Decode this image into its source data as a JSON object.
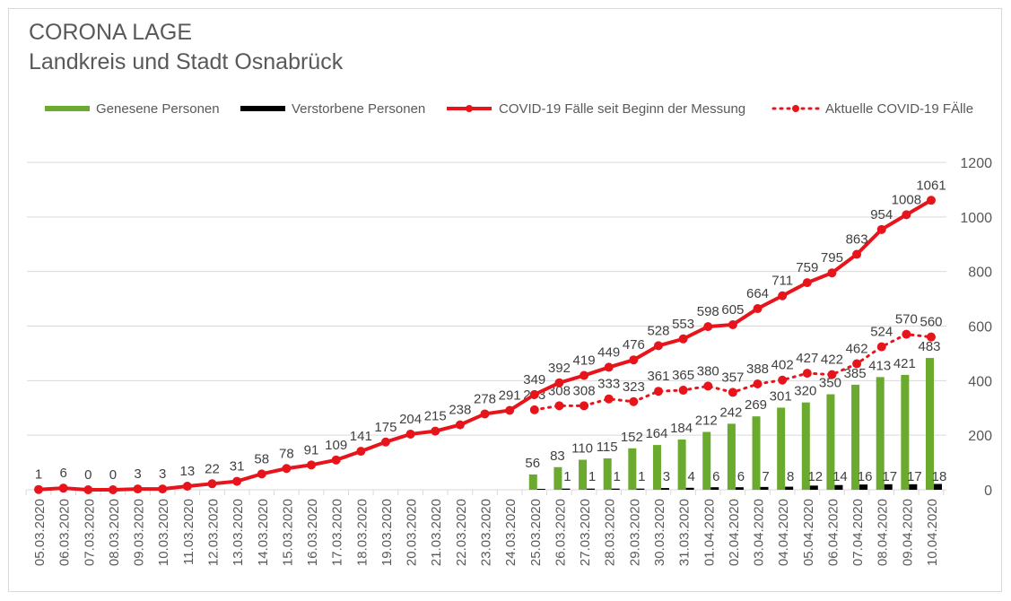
{
  "chart_data": {
    "type": "bar+line",
    "title": "CORONA LAGE",
    "subtitle": "Landkreis und Stadt Osnabrück",
    "legend_position": "top",
    "grid": true,
    "ylim": [
      0,
      1200
    ],
    "yticks": [
      0,
      200,
      400,
      600,
      800,
      1000,
      1200
    ],
    "categories": [
      "05.03.2020",
      "06.03.2020",
      "07.03.2020",
      "08.03.2020",
      "09.03.2020",
      "10.03.2020",
      "11.03.2020",
      "12.03.2020",
      "13.03.2020",
      "14.03.2020",
      "15.03.2020",
      "16.03.2020",
      "17.03.2020",
      "18.03.2020",
      "19.03.2020",
      "20.03.2020",
      "21.03.2020",
      "22.03.2020",
      "23.03.2020",
      "24.03.2020",
      "25.03.2020",
      "26.03.2020",
      "27.03.2020",
      "28.03.2020",
      "29.03.2020",
      "30.03.2020",
      "31.03.2020",
      "01.04.2020",
      "02.04.2020",
      "03.04.2020",
      "04.04.2020",
      "05.04.2020",
      "06.04.2020",
      "07.04.2020",
      "08.04.2020",
      "09.04.2020",
      "10.04.2020"
    ],
    "series": [
      {
        "name": "Genesene Personen",
        "type": "bar",
        "color": "#6aaa2e",
        "values": [
          null,
          null,
          null,
          null,
          null,
          null,
          null,
          null,
          null,
          null,
          null,
          null,
          null,
          null,
          null,
          null,
          null,
          null,
          null,
          null,
          56,
          83,
          110,
          115,
          152,
          164,
          184,
          212,
          242,
          269,
          301,
          320,
          350,
          385,
          413,
          421,
          483
        ]
      },
      {
        "name": "Verstorbene Personen",
        "type": "bar",
        "color": "#000000",
        "values": [
          null,
          null,
          null,
          null,
          null,
          null,
          null,
          null,
          null,
          null,
          null,
          null,
          null,
          null,
          null,
          null,
          null,
          null,
          null,
          null,
          0,
          1,
          1,
          1,
          1,
          3,
          4,
          6,
          6,
          7,
          8,
          12,
          14,
          16,
          17,
          17,
          18
        ]
      },
      {
        "name": "COVID-19 Fälle seit Beginn der Messung",
        "type": "line",
        "color": "#e8141b",
        "values": [
          1,
          6,
          0,
          0,
          3,
          3,
          13,
          22,
          31,
          58,
          78,
          91,
          109,
          141,
          175,
          204,
          215,
          238,
          278,
          291,
          349,
          392,
          419,
          449,
          476,
          528,
          553,
          598,
          605,
          664,
          711,
          759,
          795,
          863,
          954,
          1008,
          1061
        ]
      },
      {
        "name": "Aktuelle COVID-19 FÄlle",
        "type": "line-dotted",
        "color": "#e8141b",
        "values": [
          null,
          null,
          null,
          null,
          null,
          null,
          null,
          null,
          null,
          null,
          null,
          null,
          null,
          null,
          null,
          null,
          null,
          null,
          null,
          null,
          293,
          308,
          308,
          333,
          323,
          361,
          365,
          380,
          357,
          388,
          402,
          427,
          422,
          462,
          524,
          570,
          560
        ]
      }
    ]
  }
}
